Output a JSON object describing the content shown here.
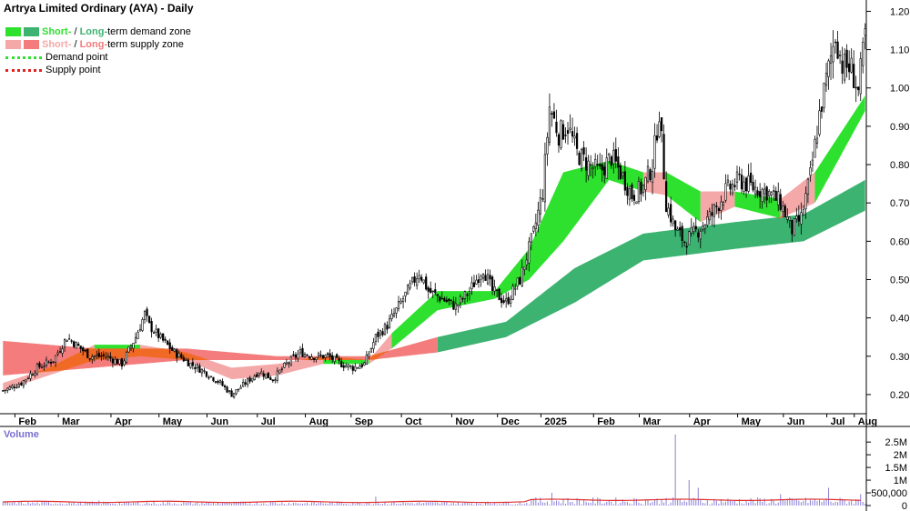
{
  "chart_data": {
    "type": "candlestick",
    "title": "Artrya Limited Ordinary (AYA) - Daily",
    "legend": {
      "demand_prefix": "Short-",
      "demand_mid": " / ",
      "demand_long": "Long-",
      "demand_suffix": "term demand zone",
      "supply_prefix": "Short-",
      "supply_mid": " / ",
      "supply_long": "Long-",
      "supply_suffix": "term supply zone",
      "demand_point": "Demand point",
      "supply_point": "Supply point"
    },
    "colors": {
      "short_demand": "#2fe12f",
      "long_demand": "#3cb371",
      "short_supply": "#f4a8a8",
      "long_supply": "#f47c7c",
      "overlap": "#f06a26",
      "candle": "#000000",
      "volume": "#8a80d8",
      "volume_avg": "#e03030"
    },
    "y_axis": {
      "min": 0.15,
      "max": 1.22,
      "ticks": [
        "0.20",
        "0.30",
        "0.40",
        "0.50",
        "0.60",
        "0.70",
        "0.80",
        "0.90",
        "1.00",
        "1.10",
        "1.20"
      ]
    },
    "x_axis": {
      "labels": [
        "Feb",
        "Mar",
        "Apr",
        "May",
        "Jun",
        "Jul",
        "Aug",
        "Sep",
        "Oct",
        "Nov",
        "Dec",
        "2025",
        "Feb",
        "Mar",
        "Apr",
        "May",
        "Jun",
        "Jul",
        "Aug"
      ]
    },
    "price_anchors": [
      [
        0,
        0.21
      ],
      [
        8,
        0.23
      ],
      [
        15,
        0.27
      ],
      [
        22,
        0.29
      ],
      [
        28,
        0.35
      ],
      [
        32,
        0.33
      ],
      [
        38,
        0.3
      ],
      [
        45,
        0.3
      ],
      [
        52,
        0.28
      ],
      [
        58,
        0.35
      ],
      [
        62,
        0.41
      ],
      [
        64,
        0.38
      ],
      [
        70,
        0.34
      ],
      [
        75,
        0.31
      ],
      [
        82,
        0.28
      ],
      [
        88,
        0.26
      ],
      [
        95,
        0.23
      ],
      [
        100,
        0.2
      ],
      [
        106,
        0.23
      ],
      [
        112,
        0.26
      ],
      [
        118,
        0.24
      ],
      [
        124,
        0.28
      ],
      [
        130,
        0.31
      ],
      [
        136,
        0.3
      ],
      [
        142,
        0.3
      ],
      [
        148,
        0.28
      ],
      [
        153,
        0.27
      ],
      [
        158,
        0.28
      ],
      [
        163,
        0.35
      ],
      [
        168,
        0.38
      ],
      [
        173,
        0.43
      ],
      [
        178,
        0.48
      ],
      [
        182,
        0.52
      ],
      [
        186,
        0.47
      ],
      [
        192,
        0.45
      ],
      [
        198,
        0.43
      ],
      [
        204,
        0.47
      ],
      [
        210,
        0.53
      ],
      [
        214,
        0.47
      ],
      [
        220,
        0.44
      ],
      [
        226,
        0.5
      ],
      [
        232,
        0.62
      ],
      [
        236,
        0.73
      ],
      [
        239,
        0.95
      ],
      [
        243,
        0.88
      ],
      [
        247,
        0.9
      ],
      [
        251,
        0.83
      ],
      [
        256,
        0.8
      ],
      [
        261,
        0.78
      ],
      [
        266,
        0.82
      ],
      [
        270,
        0.78
      ],
      [
        275,
        0.72
      ],
      [
        280,
        0.74
      ],
      [
        284,
        0.8
      ],
      [
        287,
        0.94
      ],
      [
        290,
        0.7
      ],
      [
        294,
        0.63
      ],
      [
        298,
        0.6
      ],
      [
        304,
        0.63
      ],
      [
        310,
        0.67
      ],
      [
        316,
        0.73
      ],
      [
        322,
        0.76
      ],
      [
        328,
        0.74
      ],
      [
        334,
        0.73
      ],
      [
        340,
        0.7
      ],
      [
        345,
        0.63
      ],
      [
        349,
        0.66
      ],
      [
        353,
        0.77
      ],
      [
        357,
        0.93
      ],
      [
        361,
        1.05
      ],
      [
        364,
        1.14
      ],
      [
        367,
        1.06
      ],
      [
        371,
        1.05
      ],
      [
        374,
        0.99
      ],
      [
        377,
        1.14
      ]
    ],
    "short_zone_anchors": [
      [
        0,
        0.23,
        0.21,
        "s"
      ],
      [
        20,
        0.27,
        0.25,
        "s"
      ],
      [
        40,
        0.33,
        0.29,
        "d"
      ],
      [
        60,
        0.33,
        0.3,
        "s"
      ],
      [
        80,
        0.31,
        0.29,
        "s"
      ],
      [
        100,
        0.27,
        0.24,
        "s"
      ],
      [
        120,
        0.28,
        0.25,
        "s"
      ],
      [
        140,
        0.3,
        0.28,
        "d"
      ],
      [
        160,
        0.29,
        0.28,
        "s"
      ],
      [
        170,
        0.36,
        0.32,
        "d"
      ],
      [
        190,
        0.47,
        0.42,
        "d"
      ],
      [
        215,
        0.47,
        0.45,
        "d"
      ],
      [
        230,
        0.58,
        0.5,
        "d"
      ],
      [
        245,
        0.78,
        0.6,
        "d"
      ],
      [
        265,
        0.81,
        0.76,
        "d"
      ],
      [
        280,
        0.78,
        0.73,
        "s"
      ],
      [
        290,
        0.78,
        0.72,
        "d"
      ],
      [
        305,
        0.73,
        0.65,
        "s"
      ],
      [
        320,
        0.73,
        0.69,
        "d"
      ],
      [
        340,
        0.71,
        0.66,
        "s"
      ],
      [
        355,
        0.78,
        0.7,
        "d"
      ],
      [
        377,
        0.98,
        0.94,
        "d"
      ]
    ],
    "long_zone_anchors": [
      [
        0,
        0.34,
        0.25,
        "s"
      ],
      [
        40,
        0.32,
        0.27,
        "s"
      ],
      [
        80,
        0.32,
        0.29,
        "s"
      ],
      [
        120,
        0.3,
        0.29,
        "s"
      ],
      [
        160,
        0.3,
        0.29,
        "s"
      ],
      [
        190,
        0.35,
        0.31,
        "d"
      ],
      [
        220,
        0.39,
        0.35,
        "d"
      ],
      [
        250,
        0.53,
        0.44,
        "d"
      ],
      [
        280,
        0.62,
        0.55,
        "d"
      ],
      [
        320,
        0.65,
        0.58,
        "d"
      ],
      [
        350,
        0.67,
        0.6,
        "d"
      ],
      [
        377,
        0.76,
        0.68,
        "d"
      ]
    ],
    "volume_axis": {
      "max": 2900000,
      "ticks": [
        [
          "2.5M",
          2500000
        ],
        [
          "2M",
          2000000
        ],
        [
          "1.5M",
          1500000
        ],
        [
          "1M",
          1000000
        ],
        [
          "500,000",
          500000
        ],
        [
          "0",
          0
        ]
      ]
    },
    "volume_spikes": [
      [
        42,
        200000
      ],
      [
        163,
        350000
      ],
      [
        232,
        250000
      ],
      [
        240,
        500000
      ],
      [
        290,
        300000
      ],
      [
        294,
        2800000
      ],
      [
        300,
        1000000
      ],
      [
        304,
        700000
      ],
      [
        340,
        450000
      ],
      [
        361,
        700000
      ],
      [
        375,
        450000
      ]
    ],
    "volume_average": 180000
  }
}
